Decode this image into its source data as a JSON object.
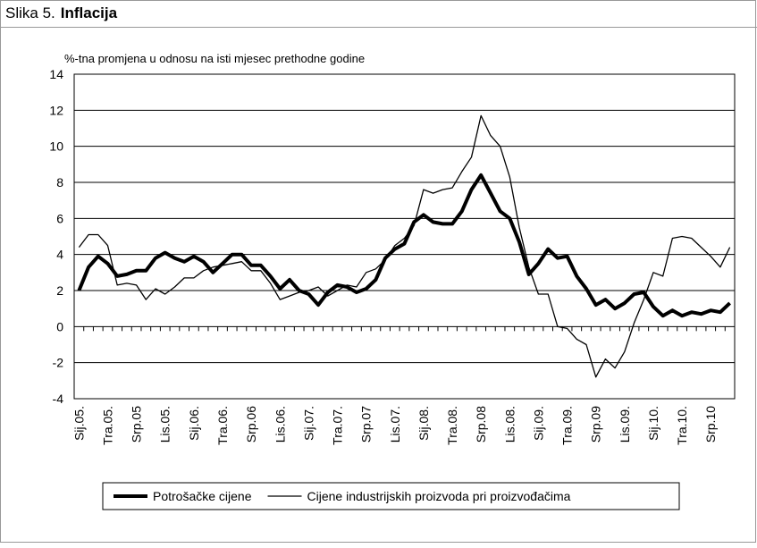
{
  "figure_label": "Slika 5.",
  "chart_data": {
    "type": "line",
    "title": "Inflacija",
    "y_axis_label": "%-tna promjena u odnosu na isti mjesec prethodne godine",
    "categories": [
      "Sij.05.",
      null,
      null,
      "Tra.05.",
      null,
      null,
      "Srp.05",
      null,
      null,
      "Lis.05.",
      null,
      null,
      "Sij.06.",
      null,
      null,
      "Tra.06.",
      null,
      null,
      "Srp.06",
      null,
      null,
      "Lis.06.",
      null,
      null,
      "Sij.07.",
      null,
      null,
      "Tra.07.",
      null,
      null,
      "Srp.07",
      null,
      null,
      "Lis.07.",
      null,
      null,
      "Sij.08.",
      null,
      null,
      "Tra.08.",
      null,
      null,
      "Srp.08",
      null,
      null,
      "Lis.08.",
      null,
      null,
      "Sij.09.",
      null,
      null,
      "Tra.09.",
      null,
      null,
      "Srp.09",
      null,
      null,
      "Lis.09.",
      null,
      null,
      "Sij.10.",
      null,
      null,
      "Tra.10.",
      null,
      null,
      "Srp.10",
      null,
      null
    ],
    "series": [
      {
        "name": "Potrošačke cijene",
        "color": "#000000",
        "width": 4,
        "values": [
          2.0,
          3.3,
          3.9,
          3.5,
          2.8,
          2.9,
          3.1,
          3.1,
          3.8,
          4.1,
          3.8,
          3.6,
          3.9,
          3.6,
          3.0,
          3.5,
          4.0,
          4.0,
          3.4,
          3.4,
          2.8,
          2.1,
          2.6,
          2.0,
          1.8,
          1.2,
          1.9,
          2.3,
          2.2,
          1.9,
          2.1,
          2.6,
          3.8,
          4.3,
          4.6,
          5.8,
          6.2,
          5.8,
          5.7,
          5.7,
          6.4,
          7.6,
          8.4,
          7.4,
          6.4,
          6.0,
          4.7,
          2.9,
          3.5,
          4.3,
          3.8,
          3.9,
          2.8,
          2.1,
          1.2,
          1.5,
          1.0,
          1.3,
          1.8,
          1.9,
          1.1,
          0.6,
          0.9,
          0.6,
          0.8,
          0.7,
          0.9,
          0.8,
          1.3
        ]
      },
      {
        "name": "Cijene industrijskih proizvoda pri proizvođačima",
        "color": "#000000",
        "width": 1.3,
        "values": [
          4.4,
          5.1,
          5.1,
          4.5,
          2.3,
          2.4,
          2.3,
          1.5,
          2.1,
          1.8,
          2.2,
          2.7,
          2.7,
          3.1,
          3.3,
          3.4,
          3.5,
          3.6,
          3.1,
          3.1,
          2.4,
          1.5,
          1.7,
          1.9,
          2.0,
          2.2,
          1.7,
          2.0,
          2.3,
          2.2,
          3.0,
          3.2,
          3.7,
          4.5,
          4.9,
          5.6,
          7.6,
          7.4,
          7.6,
          7.7,
          8.6,
          9.4,
          11.7,
          10.6,
          10.0,
          8.3,
          5.5,
          3.3,
          1.8,
          1.8,
          0.0,
          -0.1,
          -0.7,
          -1.0,
          -2.8,
          -1.8,
          -2.3,
          -1.4,
          0.2,
          1.5,
          3.0,
          2.8,
          4.9,
          5.0,
          4.9,
          4.4,
          3.9,
          3.3,
          4.4
        ]
      }
    ],
    "ylim": [
      -4,
      14
    ],
    "yticks": [
      -4,
      -2,
      0,
      2,
      4,
      6,
      8,
      10,
      12,
      14
    ],
    "grid": true,
    "legend": "bottom"
  }
}
